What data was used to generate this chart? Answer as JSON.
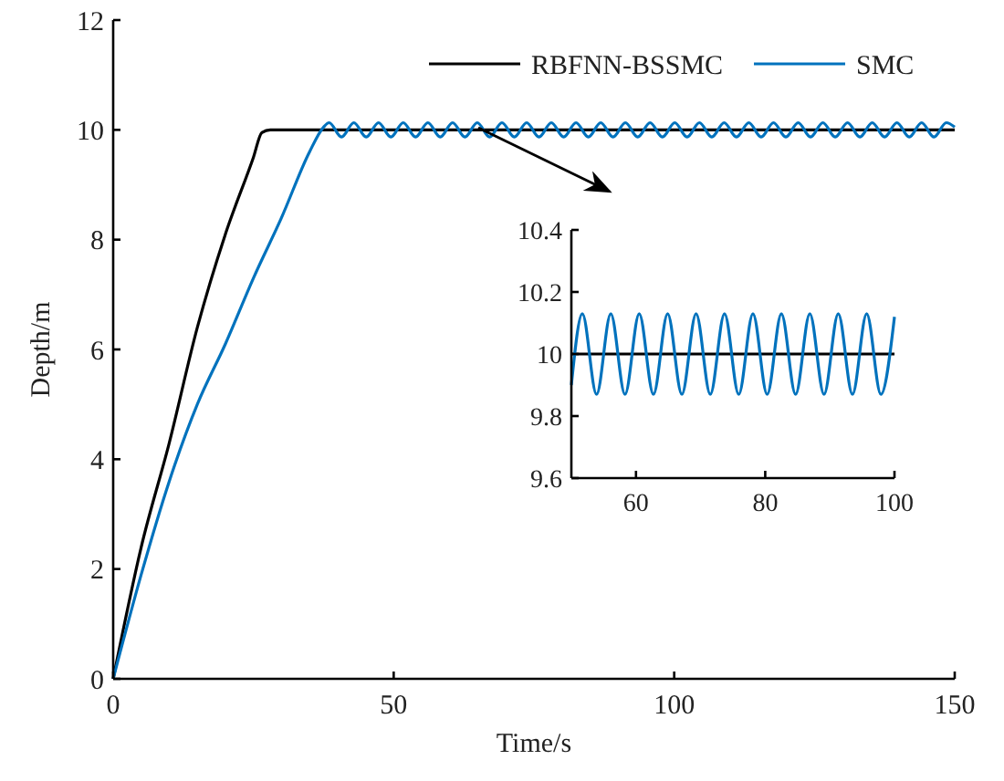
{
  "chart_data": [
    {
      "type": "line",
      "xlabel": "Time/s",
      "ylabel": "Depth/m",
      "xlim": [
        0,
        150
      ],
      "ylim": [
        0,
        12
      ],
      "xticks": [
        0,
        50,
        100,
        150
      ],
      "yticks": [
        0,
        2,
        4,
        6,
        8,
        10,
        12
      ],
      "legend": "top right",
      "grid": false,
      "series": [
        {
          "name": "RBFNN-BSSMC",
          "color": "#000000",
          "x": [
            0,
            5,
            10,
            15,
            20,
            25,
            26.5,
            28,
            150
          ],
          "values": [
            0,
            2.4,
            4.3,
            6.4,
            8.1,
            9.5,
            9.95,
            10,
            10
          ]
        },
        {
          "name": "SMC",
          "color": "#0072bd",
          "x": [
            0,
            5,
            10,
            15,
            20,
            25,
            30,
            35,
            37.5,
            38.5,
            40.7,
            42.9,
            45.1,
            47.3,
            49.5,
            51.7,
            53.9,
            56.1,
            58.3,
            60.5,
            62.7,
            64.9,
            67.1,
            69.3,
            71.5,
            73.7,
            75.9,
            78.1,
            80.3,
            82.5,
            84.7,
            86.9,
            89.1,
            91.3,
            93.5,
            95.7,
            97.9,
            100.1,
            102.3,
            104.5,
            106.7,
            108.9,
            111.1,
            113.3,
            115.5,
            117.7,
            119.9,
            122.1,
            124.3,
            126.5,
            128.7,
            130.9,
            133.1,
            135.3,
            137.5,
            139.7,
            141.9,
            144.1,
            146.3,
            148.5,
            150
          ],
          "values": [
            0,
            1.9,
            3.6,
            5.0,
            6.1,
            7.3,
            8.4,
            9.6,
            10.05,
            10.13,
            9.87,
            10.13,
            9.87,
            10.13,
            9.87,
            10.13,
            9.87,
            10.13,
            9.87,
            10.13,
            9.87,
            10.13,
            9.87,
            10.13,
            9.87,
            10.13,
            9.87,
            10.13,
            9.87,
            10.13,
            9.87,
            10.13,
            9.87,
            10.13,
            9.87,
            10.13,
            9.87,
            10.13,
            9.87,
            10.13,
            9.87,
            10.13,
            9.87,
            10.13,
            9.87,
            10.13,
            9.87,
            10.13,
            9.87,
            10.13,
            9.87,
            10.13,
            9.87,
            10.13,
            9.87,
            10.13,
            9.87,
            10.13,
            9.87,
            10.13,
            10.05
          ]
        }
      ]
    },
    {
      "type": "line",
      "xlim": [
        50,
        100
      ],
      "ylim": [
        9.6,
        10.4
      ],
      "xticks": [
        60,
        80,
        100
      ],
      "yticks": [
        9.6,
        9.8,
        10,
        10.2,
        10.4
      ],
      "grid": false,
      "series": [
        {
          "color": "#000000",
          "x": [
            50,
            100
          ],
          "values": [
            10,
            10
          ]
        },
        {
          "color": "#0072bd",
          "x": [
            50,
            51.7,
            53.9,
            56.1,
            58.3,
            60.5,
            62.7,
            64.9,
            67.1,
            69.3,
            71.5,
            73.7,
            75.9,
            78.1,
            80.3,
            82.5,
            84.7,
            86.9,
            89.1,
            91.3,
            93.5,
            95.7,
            97.9,
            100
          ],
          "values": [
            9.9,
            10.13,
            9.87,
            10.13,
            9.87,
            10.13,
            9.87,
            10.13,
            9.87,
            10.13,
            9.87,
            10.13,
            9.87,
            10.13,
            9.87,
            10.13,
            9.87,
            10.13,
            9.87,
            10.13,
            9.87,
            10.13,
            9.87,
            10.12
          ]
        }
      ]
    }
  ]
}
